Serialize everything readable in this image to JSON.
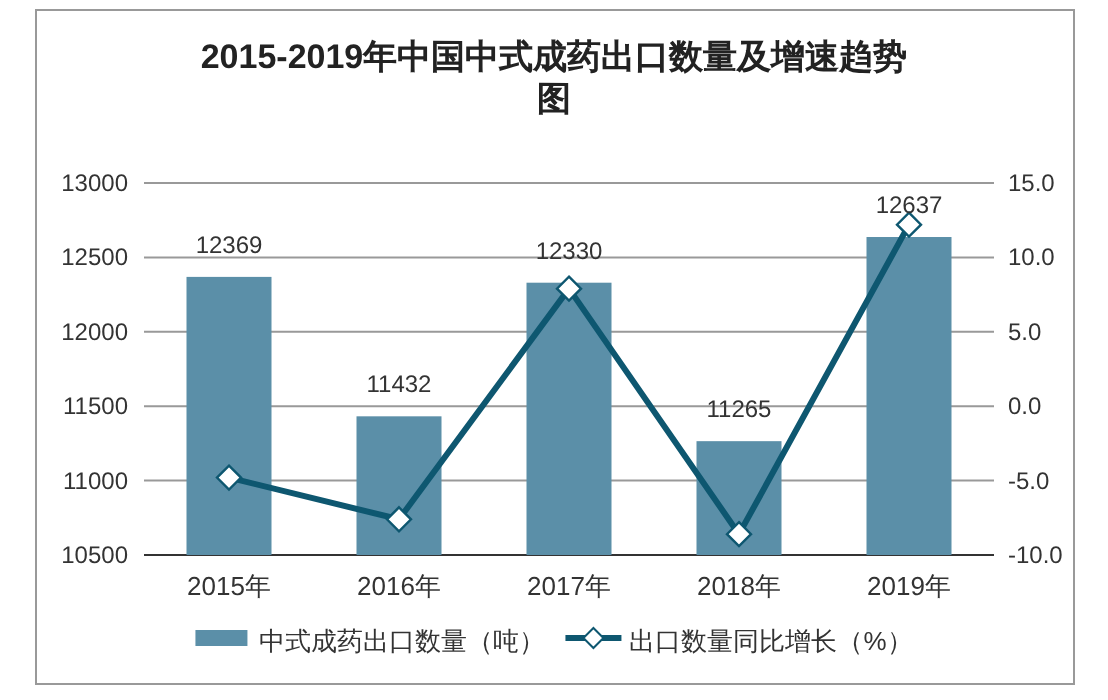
{
  "chart_data": {
    "type": "bar",
    "title": "2015-2019年中国中式成药出口数量及增速趋势图",
    "categories": [
      "2015年",
      "2016年",
      "2017年",
      "2018年",
      "2019年"
    ],
    "series": [
      {
        "name": "中式成药出口数量（吨）",
        "color": "#5b8fa8",
        "values": [
          12369,
          11432,
          12330,
          11265,
          12637
        ],
        "value_labels": [
          "12369",
          "11432",
          "12330",
          "11265",
          "12637"
        ]
      },
      {
        "name": "出口数量同比增长（%）",
        "type": "line",
        "axis": "y2",
        "color": "#0e5770",
        "marker": "diamond",
        "values": [
          -4.8,
          -7.6,
          7.9,
          -8.6,
          12.2
        ]
      }
    ],
    "ylim": [
      10500,
      13000
    ],
    "yticks": [
      10500,
      11000,
      11500,
      12000,
      12500,
      13000
    ],
    "y2lim": [
      -10,
      15
    ],
    "y2ticks": [
      {
        "value": -10,
        "label": "-10.0"
      },
      {
        "value": -5,
        "label": "-5.0"
      },
      {
        "value": 0,
        "label": "0.0"
      },
      {
        "value": 5,
        "label": "5.0"
      },
      {
        "value": 10,
        "label": "10.0"
      },
      {
        "value": 15,
        "label": "15.0"
      }
    ],
    "grid": "y",
    "legend": "bottom"
  }
}
